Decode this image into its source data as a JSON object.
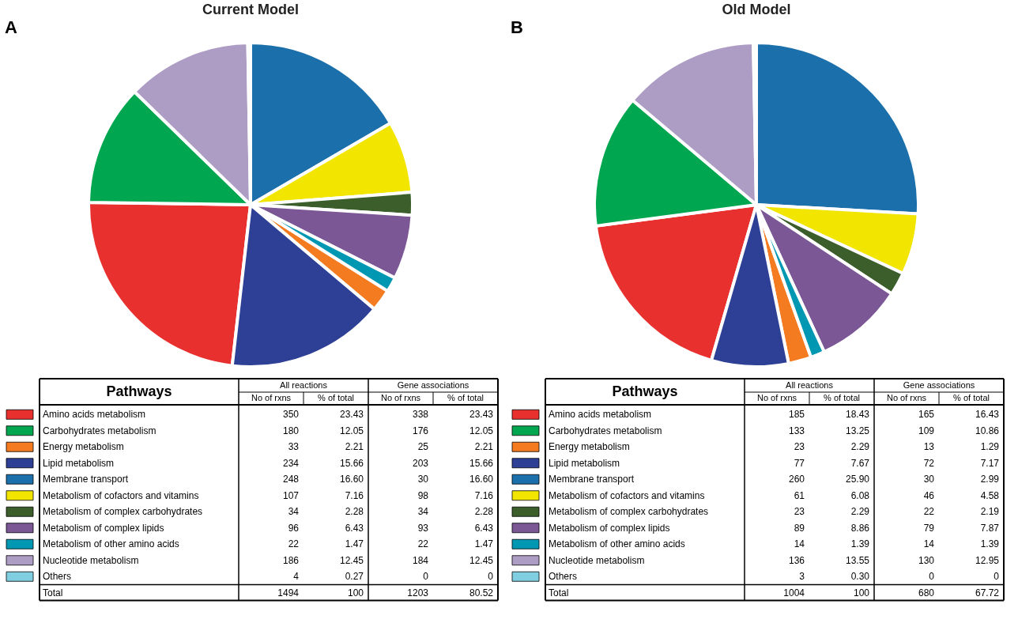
{
  "chart_data": [
    {
      "type": "pie",
      "title": "Current Model",
      "legend_title": "Pathways",
      "legend": "bottom",
      "data_labels": true,
      "categories": [
        "Amino acids metabolism",
        "Carbohydrates metabolism",
        "Energy metabolism",
        "Lipid metabolism",
        "Membrane transport",
        "Metabolism of cofactors and vitamins",
        "Metabolism of complex carbohydrates",
        "Metabolism of complex lipids",
        "Metabolism of other amino acids",
        "Nucleotide metabolism",
        "Others"
      ],
      "colors": [
        "#e8312f",
        "#00a650",
        "#f47b20",
        "#2e3f96",
        "#1b6faa",
        "#f2e600",
        "#3b5e2b",
        "#7b5796",
        "#0097b2",
        "#ad9dc4",
        "#7fcfe0"
      ],
      "values": [
        350,
        180,
        33,
        234,
        248,
        107,
        34,
        96,
        22,
        186,
        4
      ],
      "totals": [
        "1494",
        "100",
        "1203",
        "80.52"
      ],
      "annotations": [
        "A",
        "All reactions",
        "Gene associations",
        "No of rxns",
        "% of total",
        "No of rxns",
        "% of total",
        "Total",
        "23.43",
        "338",
        "23.43",
        "12.05",
        "176",
        "12.05",
        "2.21",
        "25",
        "2.21",
        "15.66",
        "203",
        "15.66",
        "16.60",
        "30",
        "16.60",
        "7.16",
        "98",
        "7.16",
        "2.28",
        "34",
        "2.28",
        "6.43",
        "93",
        "6.43",
        "1.47",
        "22",
        "1.47",
        "12.45",
        "184",
        "12.45",
        "0.27",
        "0",
        "0"
      ]
    },
    {
      "type": "pie",
      "title": "Old Model",
      "legend_title": "Pathways",
      "legend": "bottom",
      "data_labels": true,
      "categories": [
        "Amino acids metabolism",
        "Carbohydrates metabolism",
        "Energy metabolism",
        "Lipid metabolism",
        "Membrane transport",
        "Metabolism of cofactors and vitamins",
        "Metabolism of complex carbohydrates",
        "Metabolism of complex lipids",
        "Metabolism of other amino acids",
        "Nucleotide metabolism",
        "Others"
      ],
      "colors": [
        "#e8312f",
        "#00a650",
        "#f47b20",
        "#2e3f96",
        "#1b6faa",
        "#f2e600",
        "#3b5e2b",
        "#7b5796",
        "#0097b2",
        "#ad9dc4",
        "#7fcfe0"
      ],
      "values": [
        185,
        133,
        23,
        77,
        260,
        61,
        23,
        89,
        14,
        136,
        3
      ],
      "totals": [
        "1004",
        "100",
        "680",
        "67.72"
      ],
      "annotations": [
        "B",
        "All reactions",
        "Gene associations",
        "No of rxns",
        "% of total",
        "No of rxns",
        "% of total",
        "Total",
        "18.43",
        "165",
        "16.43",
        "13.25",
        "109",
        "10.86",
        "2.29",
        "13",
        "1.29",
        "7.67",
        "72",
        "7.17",
        "25.90",
        "30",
        "2.99",
        "6.08",
        "46",
        "4.58",
        "2.29",
        "22",
        "2.19",
        "8.86",
        "79",
        "7.87",
        "1.39",
        "14",
        "1.39",
        "13.55",
        "130",
        "12.95",
        "0.30",
        "0",
        "0"
      ]
    }
  ]
}
